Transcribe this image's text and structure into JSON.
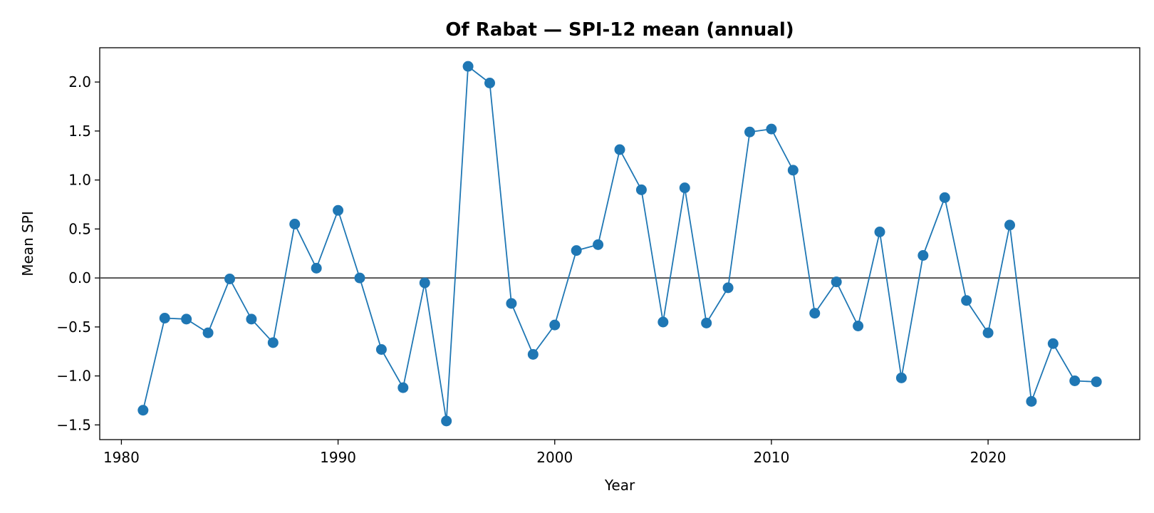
{
  "chart_data": {
    "type": "line",
    "title": "Of Rabat — SPI-12 mean (annual)",
    "xlabel": "Year",
    "ylabel": "Mean SPI",
    "xlim": [
      1979,
      2027
    ],
    "ylim": [
      -1.65,
      2.35
    ],
    "x_ticks": [
      1980,
      1990,
      2000,
      2010,
      2020
    ],
    "y_ticks": [
      -1.5,
      -1.0,
      -0.5,
      0.0,
      0.5,
      1.0,
      1.5,
      2.0
    ],
    "y_tick_labels": [
      "−1.5",
      "−1.0",
      "−0.5",
      "0.0",
      "0.5",
      "1.0",
      "1.5",
      "2.0"
    ],
    "reference_line": 0.0,
    "grid": false,
    "colors": {
      "series": "#1f77b4",
      "reference": "#555555"
    },
    "series": [
      {
        "x": [
          1981,
          1982,
          1983,
          1984,
          1985,
          1986,
          1987,
          1988,
          1989,
          1990,
          1991,
          1992,
          1993,
          1994,
          1995,
          1996,
          1997,
          1998,
          1999,
          2000,
          2001,
          2002,
          2003,
          2004,
          2005,
          2006,
          2007,
          2008,
          2009,
          2010,
          2011,
          2012,
          2013,
          2014,
          2015,
          2016,
          2017,
          2018,
          2019,
          2020,
          2021,
          2022,
          2023,
          2024,
          2025
        ],
        "y": [
          -1.35,
          -0.41,
          -0.42,
          -0.56,
          -0.01,
          -0.42,
          -0.66,
          0.55,
          0.1,
          0.69,
          0.0,
          -0.73,
          -1.12,
          -0.05,
          -1.46,
          2.16,
          1.99,
          -0.26,
          -0.78,
          -0.48,
          0.28,
          0.34,
          1.31,
          0.9,
          -0.45,
          0.92,
          -0.46,
          -0.1,
          1.49,
          1.52,
          1.1,
          -0.36,
          -0.04,
          -0.49,
          0.47,
          -1.02,
          0.23,
          0.82,
          -0.23,
          -0.56,
          0.54,
          -1.26,
          -0.67,
          -1.05,
          -1.06
        ]
      }
    ]
  }
}
